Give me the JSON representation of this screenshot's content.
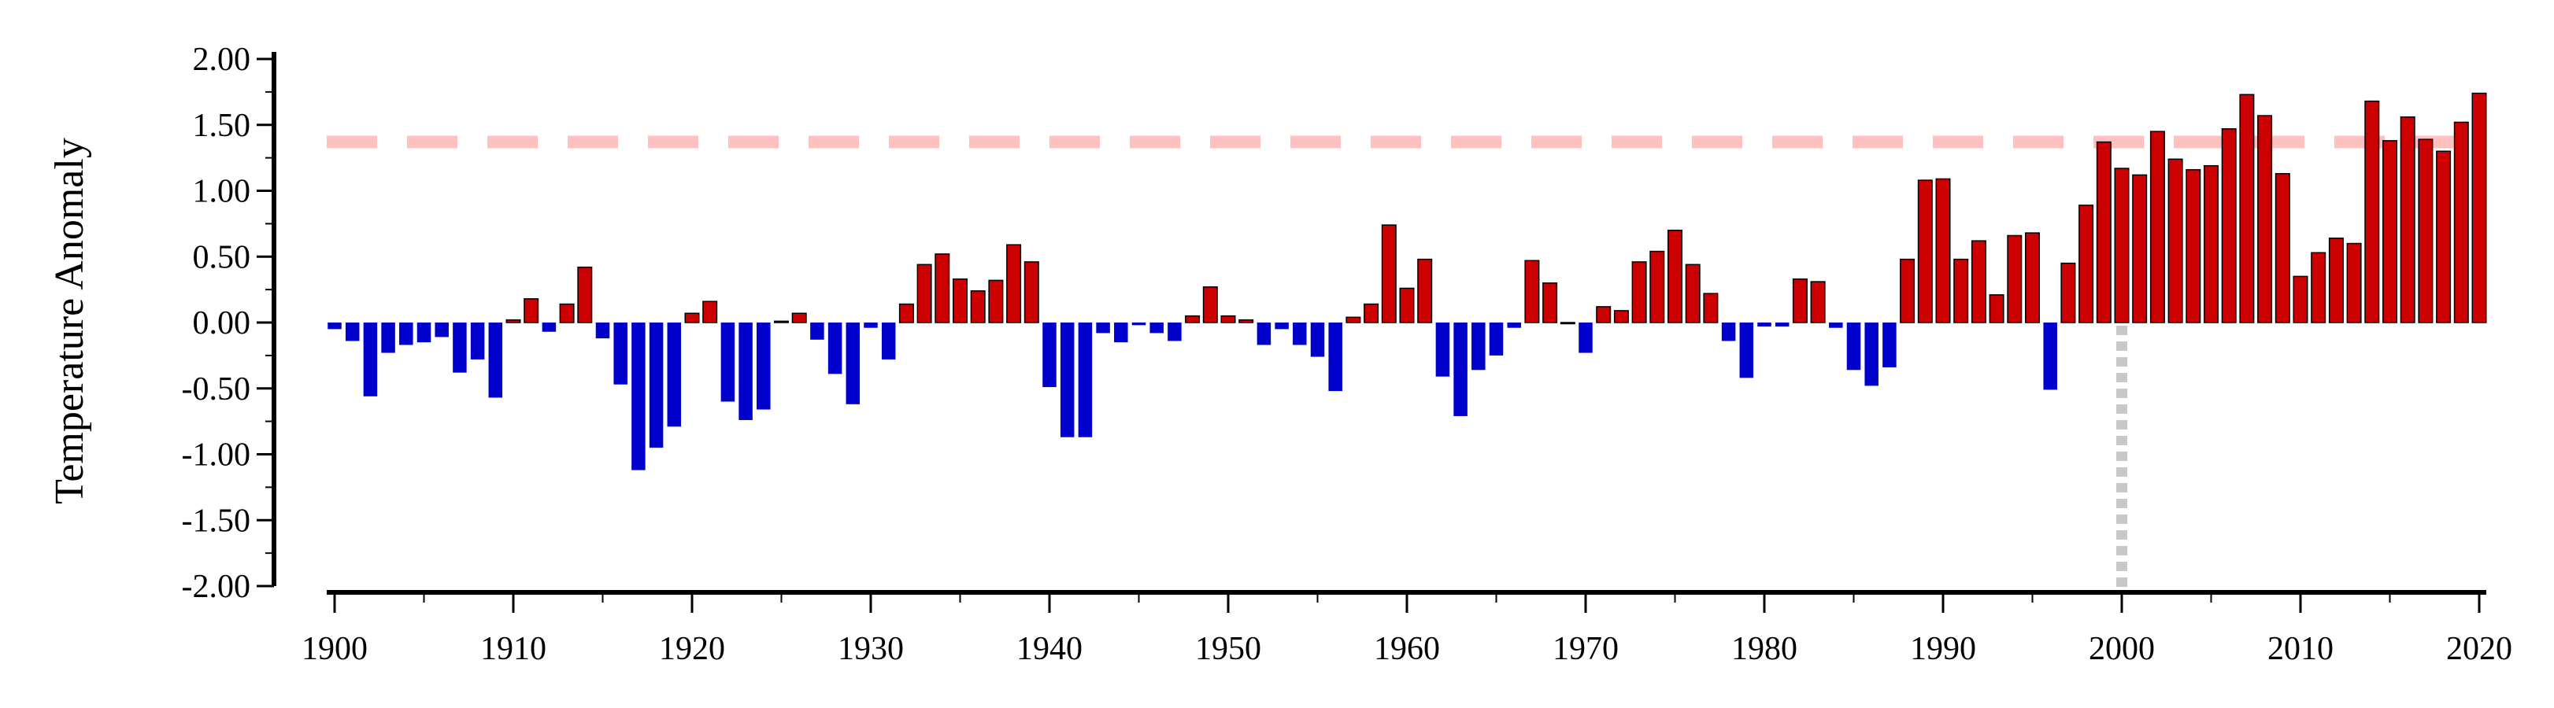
{
  "chart_data": {
    "type": "bar",
    "title": "",
    "xlabel": "",
    "ylabel": "Temperature Anomaly",
    "ylim": [
      -2.0,
      2.0
    ],
    "xlim": [
      1899.5,
      2020.5
    ],
    "y_ticks": [
      "2.00",
      "1.50",
      "1.00",
      "0.50",
      "0.00",
      "-0.50",
      "-1.00",
      "-1.50",
      "-2.00"
    ],
    "y_tick_values": [
      2.0,
      1.5,
      1.0,
      0.5,
      0.0,
      -0.5,
      -1.0,
      -1.5,
      -2.0
    ],
    "x_ticks": [
      "1900",
      "1910",
      "1920",
      "1930",
      "1940",
      "1950",
      "1960",
      "1970",
      "1980",
      "1990",
      "2000",
      "2010",
      "2020"
    ],
    "x_tick_values": [
      1900,
      1910,
      1920,
      1930,
      1940,
      1950,
      1960,
      1970,
      1980,
      1990,
      2000,
      2010,
      2020
    ],
    "grid": false,
    "legend": "none",
    "colors": {
      "positive": "#cc0000",
      "negative": "#0000cc",
      "bar_edge_positive": "#000000",
      "threshold_line": "#ffc0c0",
      "marker_line": "#c8c8c8",
      "axis": "#000000"
    },
    "threshold_line": {
      "y": 1.37,
      "style": "dashed"
    },
    "marker_line": {
      "x": 2000,
      "from_y": 0.0,
      "to_y": -2.0,
      "style": "dotted"
    },
    "series": [
      {
        "x": [
          1900,
          1901,
          1902,
          1903,
          1904,
          1905,
          1906,
          1907,
          1908,
          1909,
          1910,
          1911,
          1912,
          1913,
          1914,
          1915,
          1916,
          1917,
          1918,
          1919,
          1920,
          1921,
          1922,
          1923,
          1924,
          1925,
          1926,
          1927,
          1928,
          1929,
          1930,
          1931,
          1932,
          1933,
          1934,
          1935,
          1936,
          1937,
          1938,
          1939,
          1940,
          1941,
          1942,
          1943,
          1944,
          1945,
          1946,
          1947,
          1948,
          1949,
          1950,
          1951,
          1952,
          1953,
          1954,
          1955,
          1956,
          1957,
          1958,
          1959,
          1960,
          1961,
          1962,
          1963,
          1964,
          1965,
          1966,
          1967,
          1968,
          1969,
          1970,
          1971,
          1972,
          1973,
          1974,
          1975,
          1976,
          1977,
          1978,
          1979,
          1980,
          1981,
          1982,
          1983,
          1984,
          1985,
          1986,
          1987,
          1988,
          1989,
          1990,
          1991,
          1992,
          1993,
          1994,
          1995,
          1996,
          1997,
          1998,
          1999,
          2000,
          2001,
          2002,
          2003,
          2004,
          2005,
          2006,
          2007,
          2008,
          2009,
          2010,
          2011,
          2012,
          2013,
          2014,
          2015,
          2016,
          2017,
          2018,
          2019,
          2020
        ],
        "values": [
          -0.05,
          -0.14,
          -0.56,
          -0.23,
          -0.17,
          -0.15,
          -0.11,
          -0.38,
          -0.28,
          -0.57,
          0.02,
          0.18,
          -0.07,
          0.14,
          0.42,
          -0.12,
          -0.47,
          -1.12,
          -0.95,
          -0.79,
          0.07,
          0.16,
          -0.6,
          -0.74,
          -0.66,
          0.01,
          0.07,
          -0.13,
          -0.39,
          -0.62,
          -0.04,
          -0.28,
          0.14,
          0.44,
          0.52,
          0.33,
          0.24,
          0.32,
          0.59,
          0.46,
          -0.49,
          -0.87,
          -0.87,
          -0.08,
          -0.15,
          -0.02,
          -0.08,
          -0.14,
          0.05,
          0.27,
          0.05,
          0.02,
          -0.17,
          -0.05,
          -0.17,
          -0.26,
          -0.52,
          0.04,
          0.14,
          0.74,
          0.26,
          0.48,
          -0.41,
          -0.71,
          -0.36,
          -0.25,
          -0.04,
          0.47,
          0.3,
          0.0,
          -0.23,
          0.12,
          0.09,
          0.46,
          0.54,
          0.7,
          0.44,
          0.22,
          -0.14,
          -0.42,
          -0.03,
          -0.03,
          0.33,
          0.31,
          -0.04,
          -0.36,
          -0.48,
          -0.34,
          0.48,
          1.08,
          1.09,
          0.48,
          0.62,
          0.21,
          0.66,
          0.68,
          -0.51,
          0.45,
          0.89,
          1.37,
          1.17,
          1.12,
          1.45,
          1.24,
          1.16,
          1.19,
          1.47,
          1.73,
          1.57,
          1.13,
          0.35,
          0.53,
          0.64,
          0.6,
          1.68,
          1.38,
          1.56,
          1.39,
          1.3,
          1.52,
          1.74
        ]
      }
    ]
  }
}
